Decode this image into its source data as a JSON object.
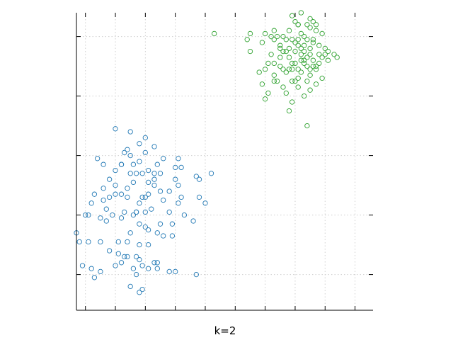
{
  "chart_data": {
    "type": "scatter",
    "title": "",
    "xlabel": "k=2",
    "ylabel": "",
    "xlim": [
      -4.3,
      5.6
    ],
    "ylim": [
      -4.2,
      5.8
    ],
    "grid": true,
    "legend": "none",
    "xticks": [
      -4,
      -3,
      -2,
      -1,
      0,
      1,
      2,
      3,
      4,
      5
    ],
    "yticks": [
      -3,
      -1,
      1,
      3,
      5
    ],
    "series": [
      {
        "color": "#1f77b4",
        "points": [
          [
            -3.0,
            1.9
          ],
          [
            -2.5,
            1.8
          ],
          [
            -2.6,
            1.2
          ],
          [
            -2.5,
            1.0
          ],
          [
            -2.7,
            1.1
          ],
          [
            -2.8,
            0.7
          ],
          [
            -3.2,
            0.2
          ],
          [
            -3.0,
            0.0
          ],
          [
            -3.4,
            0.7
          ],
          [
            -3.6,
            0.9
          ],
          [
            -3.4,
            -0.1
          ],
          [
            -3.8,
            -0.6
          ],
          [
            -3.7,
            -0.3
          ],
          [
            -3.5,
            -1.1
          ],
          [
            -4.3,
            -1.6
          ],
          [
            -3.9,
            -1.9
          ],
          [
            -4.1,
            -2.7
          ],
          [
            -3.8,
            -2.8
          ],
          [
            -3.7,
            -3.1
          ],
          [
            -3.5,
            -2.9
          ],
          [
            -3.2,
            -2.2
          ],
          [
            -3.0,
            -2.7
          ],
          [
            -2.9,
            -2.3
          ],
          [
            -2.6,
            -2.4
          ],
          [
            -2.7,
            -2.4
          ],
          [
            -2.8,
            -2.6
          ],
          [
            -2.2,
            -2.5
          ],
          [
            -2.4,
            -2.8
          ],
          [
            -2.1,
            -2.7
          ],
          [
            -2.3,
            -3.0
          ],
          [
            -1.9,
            -2.8
          ],
          [
            -1.7,
            -2.6
          ],
          [
            -1.2,
            -2.9
          ],
          [
            -1.0,
            -2.9
          ],
          [
            -0.3,
            -3.0
          ],
          [
            -2.5,
            -3.4
          ],
          [
            -2.1,
            -3.5
          ],
          [
            -2.2,
            -2.0
          ],
          [
            -1.9,
            -2.0
          ],
          [
            -1.6,
            -2.6
          ],
          [
            -1.4,
            -1.7
          ],
          [
            -1.1,
            -1.3
          ],
          [
            -0.4,
            -1.2
          ],
          [
            -0.7,
            -1.0
          ],
          [
            -1.2,
            -0.9
          ],
          [
            -1.5,
            -1.3
          ],
          [
            -1.9,
            -1.5
          ],
          [
            -1.8,
            -0.8
          ],
          [
            -2.1,
            -0.4
          ],
          [
            -2.0,
            -0.4
          ],
          [
            -2.0,
            -0.9
          ],
          [
            -2.3,
            -0.9
          ],
          [
            -2.2,
            -0.6
          ],
          [
            -2.0,
            -1.4
          ],
          [
            -2.2,
            -1.3
          ],
          [
            -2.4,
            -1.0
          ],
          [
            -2.8,
            -1.1
          ],
          [
            -3.1,
            -1.0
          ],
          [
            -3.2,
            -0.4
          ],
          [
            -3.0,
            -0.3
          ],
          [
            -2.8,
            -0.3
          ],
          [
            -2.6,
            -0.4
          ],
          [
            -2.7,
            -0.9
          ],
          [
            -3.0,
            0.5
          ],
          [
            -2.8,
            0.7
          ],
          [
            -2.5,
            0.4
          ],
          [
            -2.3,
            0.4
          ],
          [
            -2.1,
            0.4
          ],
          [
            -2.2,
            0.8
          ],
          [
            -2.4,
            0.7
          ],
          [
            -1.7,
            0.4
          ],
          [
            -1.6,
            0.7
          ],
          [
            -1.5,
            0.4
          ],
          [
            -1.4,
            0.9
          ],
          [
            -1.0,
            0.6
          ],
          [
            -1.0,
            0.2
          ],
          [
            -0.8,
            0.6
          ],
          [
            -0.9,
            0.0
          ],
          [
            -1.2,
            -0.2
          ],
          [
            -1.5,
            -0.2
          ],
          [
            -1.7,
            0.0
          ],
          [
            -1.9,
            0.1
          ],
          [
            -1.9,
            -0.3
          ],
          [
            -2.4,
            0.1
          ],
          [
            -2.6,
            -0.1
          ],
          [
            -3.3,
            -0.8
          ],
          [
            -3.5,
            -1.9
          ],
          [
            -4.0,
            -1.0
          ],
          [
            -3.9,
            -1.0
          ],
          [
            -2.9,
            -1.9
          ],
          [
            -2.5,
            -1.6
          ],
          [
            -0.9,
            -0.6
          ],
          [
            -0.8,
            -0.4
          ],
          [
            0.2,
            0.4
          ],
          [
            0.0,
            -0.6
          ],
          [
            -0.2,
            -0.4
          ],
          [
            -2.2,
            -3.6
          ],
          [
            -2.3,
            -2.4
          ],
          [
            -1.6,
            -2.8
          ],
          [
            -3.3,
            -1.2
          ],
          [
            -2.0,
            1.1
          ],
          [
            -2.2,
            1.4
          ],
          [
            -2.0,
            1.6
          ],
          [
            -2.3,
            -0.9
          ],
          [
            -1.7,
            0.2
          ],
          [
            -1.4,
            -0.5
          ],
          [
            -0.9,
            0.9
          ],
          [
            -1.1,
            -1.7
          ],
          [
            -1.6,
            -1.6
          ],
          [
            -2.6,
            -1.9
          ],
          [
            -4.2,
            -1.9
          ],
          [
            -3.4,
            -0.5
          ],
          [
            -0.2,
            0.2
          ],
          [
            -0.3,
            0.3
          ],
          [
            -1.7,
            1.3
          ],
          [
            -1.9,
            0.5
          ]
        ]
      },
      {
        "color": "#2ca02c",
        "points": [
          [
            3.1,
            5.4
          ],
          [
            3.5,
            5.3
          ],
          [
            3.6,
            5.5
          ],
          [
            3.7,
            5.2
          ],
          [
            3.5,
            5.6
          ],
          [
            3.3,
            5.0
          ],
          [
            3.4,
            4.9
          ],
          [
            3.6,
            4.8
          ],
          [
            3.8,
            4.7
          ],
          [
            4.0,
            4.6
          ],
          [
            3.2,
            4.6
          ],
          [
            3.0,
            4.5
          ],
          [
            2.8,
            4.3
          ],
          [
            2.5,
            4.0
          ],
          [
            2.7,
            3.8
          ],
          [
            2.9,
            3.5
          ],
          [
            3.1,
            3.3
          ],
          [
            3.3,
            3.0
          ],
          [
            3.5,
            3.2
          ],
          [
            3.7,
            3.4
          ],
          [
            3.9,
            3.6
          ],
          [
            3.5,
            3.9
          ],
          [
            3.6,
            4.2
          ],
          [
            3.4,
            4.3
          ],
          [
            3.2,
            4.2
          ],
          [
            3.0,
            4.1
          ],
          [
            2.9,
            3.9
          ],
          [
            3.2,
            3.8
          ],
          [
            3.5,
            3.7
          ],
          [
            3.7,
            3.9
          ],
          [
            3.8,
            4.1
          ],
          [
            3.4,
            4.0
          ],
          [
            2.5,
            4.3
          ],
          [
            2.3,
            4.1
          ],
          [
            2.5,
            4.7
          ],
          [
            2.6,
            5.0
          ],
          [
            2.2,
            5.0
          ],
          [
            2.3,
            5.2
          ],
          [
            1.5,
            5.1
          ],
          [
            1.9,
            4.8
          ],
          [
            1.9,
            3.4
          ],
          [
            2.3,
            3.5
          ],
          [
            2.7,
            3.1
          ],
          [
            2.9,
            2.8
          ],
          [
            2.6,
            3.3
          ],
          [
            2.3,
            3.7
          ],
          [
            2.0,
            3.9
          ],
          [
            2.7,
            4.5
          ],
          [
            3.3,
            4.5
          ],
          [
            3.1,
            3.6
          ],
          [
            2.8,
            3.9
          ],
          [
            2.8,
            5.2
          ],
          [
            3.0,
            5.5
          ],
          [
            3.2,
            5.8
          ],
          [
            2.9,
            5.7
          ],
          [
            3.9,
            5.1
          ],
          [
            4.0,
            4.4
          ],
          [
            4.1,
            4.2
          ],
          [
            3.9,
            4.3
          ],
          [
            3.3,
            4.7
          ],
          [
            3.5,
            4.6
          ],
          [
            3.8,
            4.4
          ],
          [
            3.1,
            4.9
          ],
          [
            3.2,
            5.1
          ],
          [
            3.1,
            5.4
          ],
          [
            3.4,
            5.4
          ],
          [
            3.6,
            4.9
          ],
          [
            3.3,
            4.1
          ],
          [
            3.6,
            4.0
          ],
          [
            2.6,
            3.9
          ],
          [
            2.0,
            2.9
          ],
          [
            2.1,
            3.1
          ],
          [
            2.8,
            2.5
          ],
          [
            3.4,
            2.0
          ],
          [
            2.4,
            3.5
          ],
          [
            2.9,
            4.9
          ],
          [
            2.2,
            4.4
          ],
          [
            4.4,
            4.3
          ],
          [
            4.3,
            4.4
          ],
          [
            2.6,
            4.5
          ],
          [
            1.8,
            3.8
          ],
          [
            2.1,
            4.1
          ],
          [
            3.7,
            4.0
          ],
          [
            3.0,
            4.8
          ],
          [
            2.7,
            4.9
          ],
          [
            2.4,
            5.0
          ],
          [
            2.8,
            4.6
          ],
          [
            3.5,
            4.4
          ],
          [
            3.7,
            5.4
          ],
          [
            2.5,
            4.6
          ],
          [
            3.1,
            4.7
          ],
          [
            3.3,
            4.2
          ],
          [
            3.1,
            3.9
          ],
          [
            3.0,
            3.5
          ],
          [
            3.4,
            3.5
          ],
          [
            4.1,
            4.5
          ],
          [
            2.9,
            4.1
          ],
          [
            1.5,
            4.5
          ],
          [
            0.3,
            5.1
          ],
          [
            1.4,
            4.9
          ],
          [
            2.0,
            5.1
          ],
          [
            2.3,
            4.9
          ],
          [
            3.2,
            4.4
          ]
        ]
      }
    ]
  }
}
